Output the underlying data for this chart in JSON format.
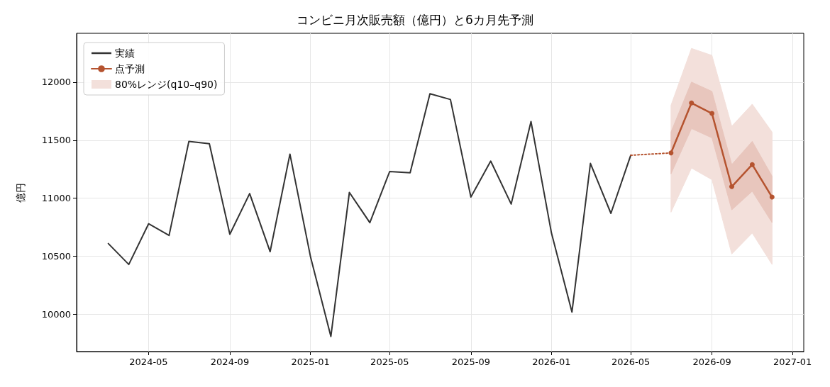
{
  "chart_data": {
    "type": "line",
    "title": "コンビニ月次販売額（億円）と6カ月先予測",
    "ylabel": "億円",
    "xlim": [
      "2024-01-13",
      "2027-01-18"
    ],
    "xticks": [
      "2024-05",
      "2024-09",
      "2025-01",
      "2025-05",
      "2025-09",
      "2026-01",
      "2026-05",
      "2026-09",
      "2027-01"
    ],
    "ylim": [
      9680,
      12420
    ],
    "yticks": [
      10000,
      10500,
      11000,
      11500,
      12000
    ],
    "grid": true,
    "legend": "top left",
    "series": [
      {
        "name": "実績",
        "color": "#333333",
        "marker": "none",
        "line_style": "solid",
        "x": [
          "2024-03",
          "2024-04",
          "2024-05",
          "2024-06",
          "2024-07",
          "2024-08",
          "2024-09",
          "2024-10",
          "2024-11",
          "2024-12",
          "2025-01",
          "2025-02",
          "2025-03",
          "2025-04",
          "2025-05",
          "2025-06",
          "2025-07",
          "2025-08",
          "2025-09",
          "2025-10",
          "2025-11",
          "2025-12",
          "2026-01",
          "2026-02",
          "2026-03",
          "2026-04",
          "2026-05"
        ],
        "values": [
          10610,
          10430,
          10780,
          10680,
          11490,
          11470,
          10690,
          11040,
          10540,
          11380,
          10500,
          9810,
          11050,
          10790,
          11230,
          11220,
          11900,
          11850,
          11010,
          11320,
          10950,
          11660,
          10700,
          10020,
          11300,
          10870,
          11370
        ]
      },
      {
        "color": "#b5532f",
        "marker": "none",
        "line_style": "dotted",
        "x": [
          "2026-05",
          "2026-07"
        ],
        "values": [
          11370,
          11390
        ]
      },
      {
        "name": "点予測",
        "color": "#b5532f",
        "marker": "circle",
        "line_style": "solid",
        "x": [
          "2026-07",
          "2026-08",
          "2026-09",
          "2026-10",
          "2026-11",
          "2026-12"
        ],
        "values": [
          11390,
          11820,
          11730,
          11100,
          11290,
          11010
        ]
      },
      {
        "name": "80%レンジ(q10–q90)",
        "type": "area",
        "color": "#f3e0db",
        "x": [
          "2026-07",
          "2026-08",
          "2026-09",
          "2026-10",
          "2026-11",
          "2026-12"
        ],
        "values": [
          null,
          null,
          null,
          null,
          null,
          null
        ],
        "lower": [
          10880,
          11260,
          11160,
          10520,
          10700,
          10430
        ],
        "upper": [
          11800,
          12290,
          12230,
          11620,
          11810,
          11570
        ]
      },
      {
        "type": "area",
        "color": "#e8c6bd",
        "x": [
          "2026-07",
          "2026-08",
          "2026-09",
          "2026-10",
          "2026-11",
          "2026-12"
        ],
        "values": [
          null,
          null,
          null,
          null,
          null,
          null
        ],
        "lower": [
          11210,
          11600,
          11520,
          10900,
          11060,
          10790
        ],
        "upper": [
          11570,
          12000,
          11920,
          11290,
          11490,
          11190
        ]
      }
    ]
  }
}
